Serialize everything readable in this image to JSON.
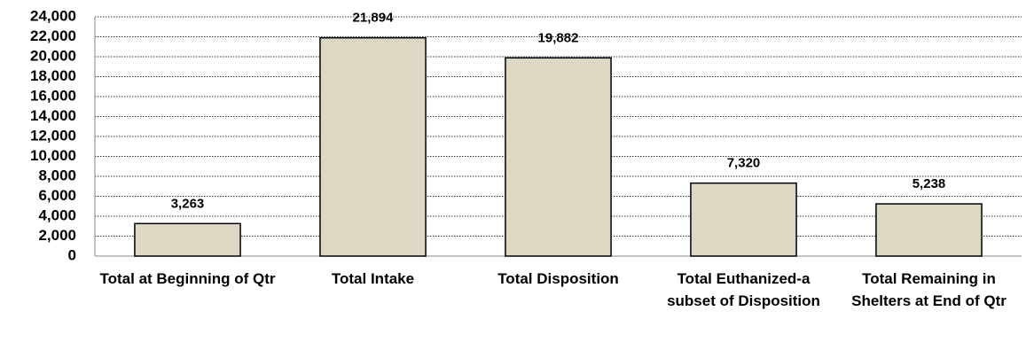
{
  "chart_data": {
    "type": "bar",
    "categories": [
      "Total at Beginning of Qtr",
      "Total Intake",
      "Total Disposition",
      "Total Euthanized-a subset of Disposition",
      "Total Remaining in Shelters at End of Qtr"
    ],
    "values": [
      3263,
      21894,
      19882,
      7320,
      5238
    ],
    "value_labels": [
      "3,263",
      "21,894",
      "19,882",
      "7,320",
      "5,238"
    ],
    "color": "#ddd8c4",
    "ylim": [
      0,
      24000
    ],
    "yticks": [
      0,
      {
        "value": 2000,
        "label": "2,000"
      },
      {
        "value": 4000,
        "label": "4,000"
      },
      {
        "value": 6000,
        "label": "6,000"
      },
      {
        "value": 8000,
        "label": "8,000"
      },
      {
        "value": 10000,
        "label": "10,000"
      },
      {
        "value": 12000,
        "label": "12,000"
      },
      {
        "value": 14000,
        "label": "14,000"
      },
      {
        "value": 16000,
        "label": "16,000"
      },
      {
        "value": 18000,
        "label": "18,000"
      },
      {
        "value": 20000,
        "label": "20,000"
      },
      {
        "value": 22000,
        "label": "22,000"
      },
      {
        "value": 24000,
        "label": "24,000"
      }
    ],
    "grid": true
  }
}
